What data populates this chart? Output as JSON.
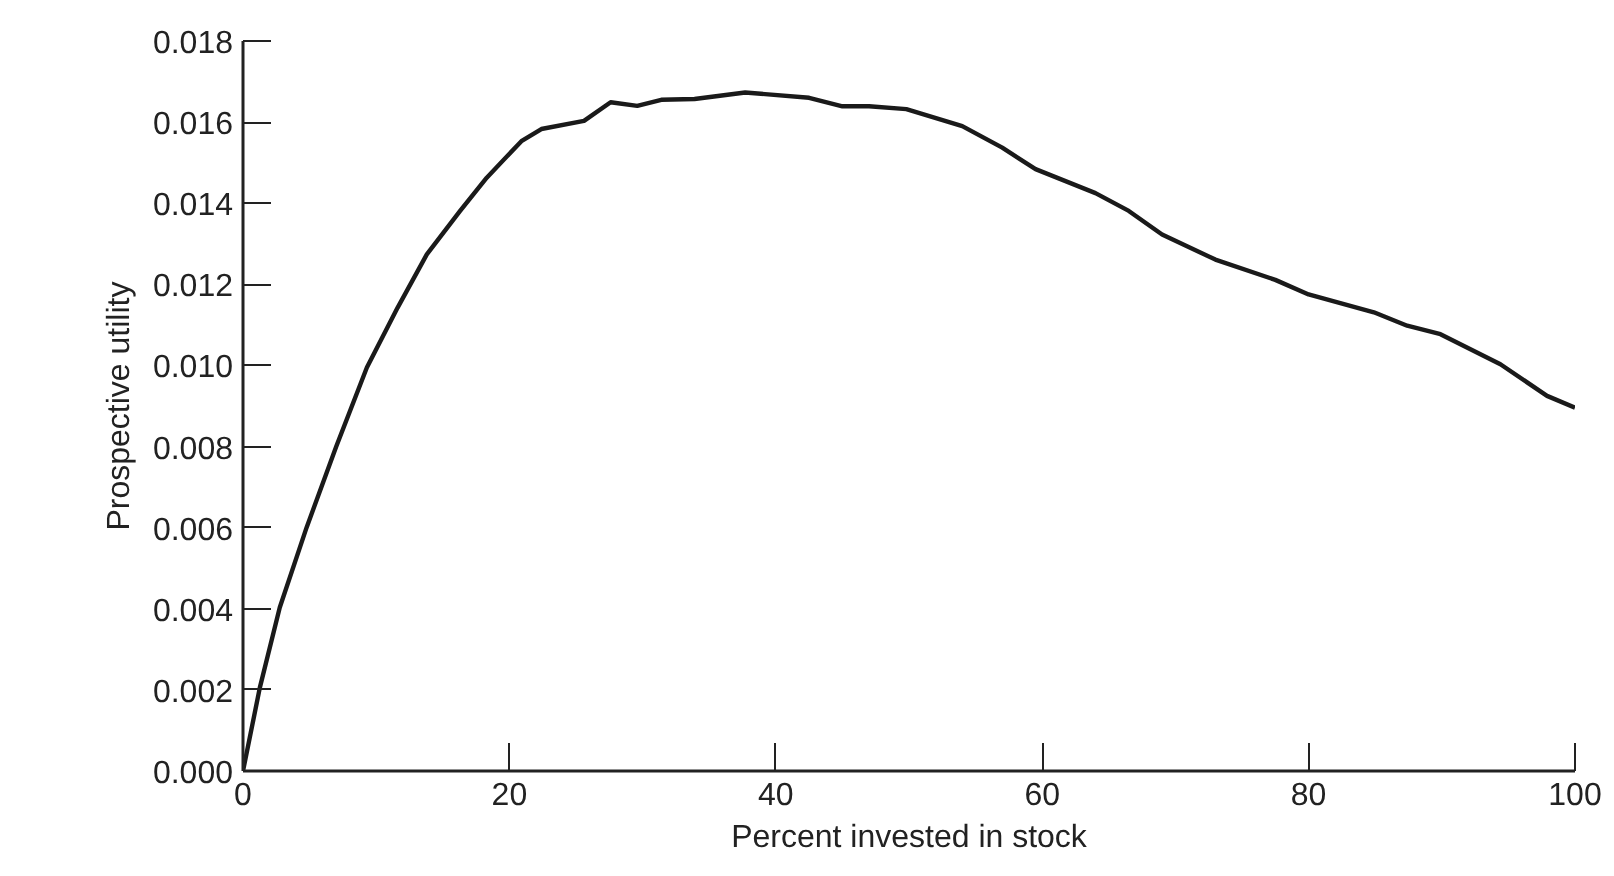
{
  "chart_data": {
    "type": "line",
    "xlabel": "Percent invested in stock",
    "ylabel": "Prospective utility",
    "series": [
      {
        "color": "#1a1a1a",
        "x": [
          0,
          1.26,
          2.76,
          4.77,
          7.0,
          9.3,
          11.6,
          13.8,
          16.3,
          18.3,
          20.9,
          22.4,
          25.6,
          27.6,
          29.6,
          31.4,
          33.9,
          37.7,
          42.5,
          45,
          47,
          49.8,
          54,
          57,
          59.5,
          64,
          66.5,
          69,
          73,
          77.5,
          80,
          84.9,
          87.4,
          89.9,
          94.4,
          97.9,
          100
        ],
        "values": [
          0,
          0.00205,
          0.00403,
          0.006,
          0.008,
          0.00995,
          0.01142,
          0.01274,
          0.01381,
          0.01463,
          0.01553,
          0.01583,
          0.01603,
          0.01649,
          0.0164,
          0.01655,
          0.01657,
          0.01673,
          0.0166,
          0.01639,
          0.01639,
          0.01632,
          0.0159,
          0.01537,
          0.01484,
          0.01425,
          0.01381,
          0.01323,
          0.01261,
          0.01211,
          0.01175,
          0.01131,
          0.01098,
          0.01077,
          0.01003,
          0.00925,
          0.00896
        ]
      }
    ],
    "xlim": [
      0,
      100
    ],
    "xticks": [
      0,
      20,
      40,
      60,
      80,
      100
    ],
    "ylim": [
      0,
      0.018
    ],
    "yticks": [
      {
        "value": 0,
        "label": "0.000"
      },
      {
        "value": 0.002,
        "label": "0.002"
      },
      {
        "value": 0.004,
        "label": "0.004"
      },
      {
        "value": 0.006,
        "label": "0.006"
      },
      {
        "value": 0.008,
        "label": "0.008"
      },
      {
        "value": 0.01,
        "label": "0.010"
      },
      {
        "value": 0.012,
        "label": "0.012"
      },
      {
        "value": 0.014,
        "label": "0.014"
      },
      {
        "value": 0.016,
        "label": "0.016"
      },
      {
        "value": 0.018,
        "label": "0.018"
      }
    ],
    "grid": false,
    "marker": "none",
    "line_style": "solid"
  }
}
